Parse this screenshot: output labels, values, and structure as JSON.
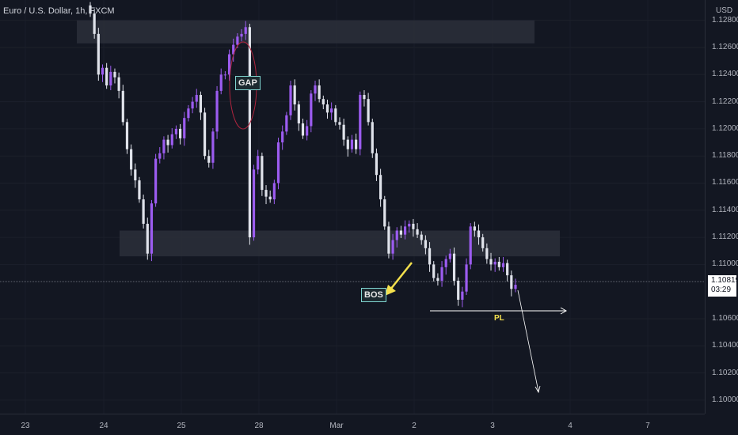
{
  "header": {
    "symbol_title": "Euro / U.S. Dollar, 1h, FXCM",
    "currency": "USD"
  },
  "price_scale": {
    "ticks": [
      "1.12800",
      "1.12600",
      "1.12400",
      "1.12200",
      "1.12000",
      "1.11800",
      "1.11600",
      "1.11400",
      "1.11200",
      "1.11000",
      "1.10600",
      "1.10400",
      "1.10200",
      "1.10000"
    ],
    "current_price": "1.10819",
    "countdown": "03:29"
  },
  "annotations": {
    "gap": "GAP",
    "bos": "BOS",
    "pl": "PL"
  },
  "colors": {
    "background": "#131722",
    "up": "#9c5cf0",
    "down": "#e0e3eb",
    "zone": "#2a2d38",
    "arrow": "#f4e04d",
    "ellipse": "#b0243e"
  },
  "chart_data": {
    "type": "candlestick",
    "title": "Euro / U.S. Dollar, 1h, FXCM",
    "x_ticks": [
      "23",
      "24",
      "25",
      "28",
      "Mar",
      "2",
      "3",
      "4",
      "7"
    ],
    "ylim": [
      1.099,
      1.1295
    ],
    "y_ticks": [
      1.128,
      1.126,
      1.124,
      1.122,
      1.12,
      1.118,
      1.116,
      1.114,
      1.112,
      1.11,
      1.106,
      1.104,
      1.102,
      1.1
    ],
    "last_price": 1.10819,
    "zones": [
      {
        "y_from": 1.1263,
        "y_to": 1.128
      },
      {
        "y_from": 1.1106,
        "y_to": 1.1125
      }
    ],
    "closes": [
      1.1285,
      1.127,
      1.124,
      1.1245,
      1.1232,
      1.1242,
      1.1238,
      1.1228,
      1.1205,
      1.1185,
      1.117,
      1.1162,
      1.1148,
      1.113,
      1.1108,
      1.1145,
      1.1178,
      1.1182,
      1.1192,
      1.1188,
      1.1196,
      1.12,
      1.1193,
      1.1208,
      1.1215,
      1.122,
      1.1225,
      1.1212,
      1.118,
      1.1175,
      1.1198,
      1.1228,
      1.124,
      1.124,
      1.1255,
      1.1262,
      1.1268,
      1.127,
      1.1275,
      1.112,
      1.117,
      1.118,
      1.1155,
      1.115,
      1.1148,
      1.116,
      1.119,
      1.1198,
      1.121,
      1.1232,
      1.1218,
      1.1204,
      1.1195,
      1.1202,
      1.1226,
      1.1232,
      1.1222,
      1.1218,
      1.1212,
      1.1215,
      1.1205,
      1.1203,
      1.1192,
      1.1185,
      1.1192,
      1.1185,
      1.1225,
      1.1222,
      1.1205,
      1.1182,
      1.1166,
      1.1148,
      1.1128,
      1.1108,
      1.1118,
      1.1125,
      1.1122,
      1.1128,
      1.113,
      1.1126,
      1.1122,
      1.1118,
      1.1112,
      1.11,
      1.109,
      1.1088,
      1.1098,
      1.1104,
      1.1108,
      1.1088,
      1.1074,
      1.108,
      1.11,
      1.1128,
      1.1125,
      1.112,
      1.1112,
      1.1104,
      1.11,
      1.1102,
      1.1098,
      1.1101,
      1.1092,
      1.1082,
      1.1085
    ]
  }
}
